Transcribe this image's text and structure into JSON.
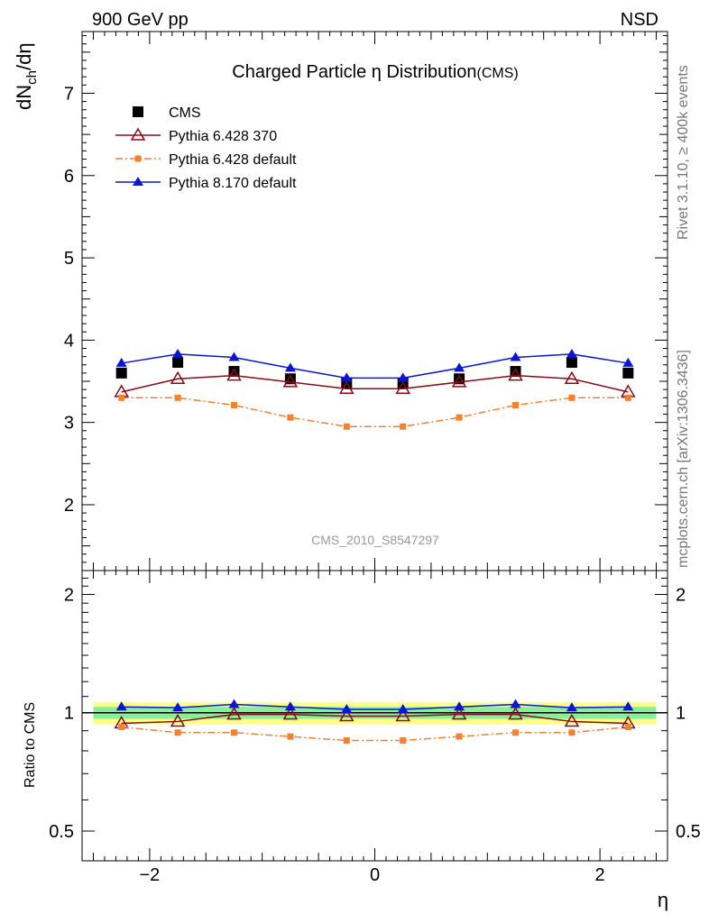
{
  "header": {
    "left": "900 GeV pp",
    "right": "NSD"
  },
  "side_labels": {
    "rivet": "Rivet 3.1.10, ≥ 400k events",
    "mcplots": "mcplots.cern.ch [arXiv:1306.3436]"
  },
  "chart_data": [
    {
      "type": "line",
      "title": "Charged Particle η Distribution",
      "title_suffix": "(CMS)",
      "ylabel": "dN_ch/dη",
      "xlabel": "η",
      "xlim": [
        -2.6,
        2.6
      ],
      "ylim": [
        1.2,
        7.75
      ],
      "x_ticks": [
        -2,
        0,
        2
      ],
      "x_tick_labels": [
        "−2",
        "0",
        "2"
      ],
      "y_ticks": [
        2,
        3,
        4,
        5,
        6,
        7
      ],
      "y_tick_labels": [
        "2",
        "3",
        "4",
        "5",
        "6",
        "7"
      ],
      "watermark": "CMS_2010_S8547297",
      "legend_placement": "top-left",
      "x": [
        -2.25,
        -1.75,
        -1.25,
        -0.75,
        -0.25,
        0.25,
        0.75,
        1.25,
        1.75,
        2.25
      ],
      "series": [
        {
          "name": "CMS",
          "color": "#000000",
          "marker": "square-filled",
          "line": "none",
          "values": [
            3.6,
            3.73,
            3.62,
            3.53,
            3.48,
            3.48,
            3.53,
            3.62,
            3.73,
            3.6
          ]
        },
        {
          "name": "Pythia 6.428 370",
          "color": "#8b0a16",
          "marker": "triangle-open",
          "line": "solid",
          "values": [
            3.37,
            3.53,
            3.57,
            3.49,
            3.41,
            3.41,
            3.49,
            3.57,
            3.53,
            3.37
          ]
        },
        {
          "name": "Pythia 6.428 default",
          "color": "#f28130",
          "marker": "square-small",
          "line": "dashdot",
          "values": [
            3.3,
            3.3,
            3.21,
            3.06,
            2.95,
            2.95,
            3.06,
            3.21,
            3.3,
            3.3
          ]
        },
        {
          "name": "Pythia 8.170 default",
          "color": "#0a16d6",
          "marker": "triangle-filled",
          "line": "solid",
          "values": [
            3.72,
            3.83,
            3.79,
            3.66,
            3.54,
            3.54,
            3.66,
            3.79,
            3.83,
            3.72
          ]
        }
      ]
    },
    {
      "type": "line",
      "ylabel": "Ratio to CMS",
      "xlabel": "η",
      "xlim": [
        -2.6,
        2.6
      ],
      "ylim": [
        0.42,
        2.3
      ],
      "y_ticks": [
        0.5,
        1,
        2
      ],
      "y_tick_labels": [
        "0.5",
        "1",
        "2"
      ],
      "log_y": true,
      "reference_line": 1.0,
      "bands": [
        {
          "name": "outer",
          "color": "#ffff88",
          "low": 0.935,
          "high": 1.065
        },
        {
          "name": "inner",
          "color": "#88ee99",
          "low": 0.965,
          "high": 1.035
        }
      ],
      "x": [
        -2.25,
        -1.75,
        -1.25,
        -0.75,
        -0.25,
        0.25,
        0.75,
        1.25,
        1.75,
        2.25
      ],
      "series": [
        {
          "name": "Pythia 6.428 370",
          "color": "#8b0a16",
          "marker": "triangle-open",
          "line": "solid",
          "values": [
            0.94,
            0.95,
            0.99,
            0.99,
            0.98,
            0.98,
            0.99,
            0.99,
            0.95,
            0.94
          ]
        },
        {
          "name": "Pythia 6.428 default",
          "color": "#f28130",
          "marker": "square-small",
          "line": "dashdot",
          "values": [
            0.92,
            0.89,
            0.89,
            0.87,
            0.85,
            0.85,
            0.87,
            0.89,
            0.89,
            0.92
          ]
        },
        {
          "name": "Pythia 8.170 default",
          "color": "#0a16d6",
          "marker": "triangle-filled",
          "line": "solid",
          "values": [
            1.035,
            1.03,
            1.05,
            1.035,
            1.02,
            1.02,
            1.035,
            1.05,
            1.03,
            1.035
          ]
        }
      ]
    }
  ]
}
